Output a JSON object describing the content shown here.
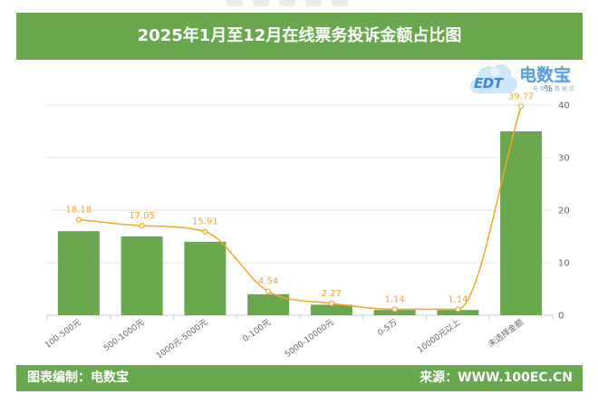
{
  "chart_data": {
    "type": "bar",
    "title": "2025年1月至12月在线票务投诉金额占比图",
    "categories": [
      "100-500元",
      "500-1000元",
      "1000元-5000元",
      "0-100元",
      "5000-10000元",
      "0-5万",
      "10000元以上",
      "未选择金额"
    ],
    "series": [
      {
        "type": "bar",
        "values": [
          16,
          15,
          14,
          4,
          2,
          1,
          1,
          35
        ]
      },
      {
        "type": "line",
        "axis": "right",
        "values": [
          18.18,
          17.05,
          15.91,
          4.54,
          2.27,
          1.14,
          1.14,
          39.77
        ]
      }
    ],
    "y_axis": {
      "position": "right",
      "unit": "%",
      "range": [
        0,
        40
      ],
      "ticks": [
        0,
        10,
        20,
        30,
        40
      ]
    },
    "grid": true,
    "legend": "none",
    "colors": {
      "bar": "#6aa84f",
      "line": "#f5a623",
      "label": "#f0a32e"
    }
  },
  "logo": {
    "cloud_text": "EDT",
    "name": "电数宝",
    "tagline": "电商大数据库"
  },
  "footer": {
    "credit": "图表编制：电数宝",
    "source": "来源：WWW.100EC.CN"
  },
  "theme": {
    "header_color": "#6aa84f"
  }
}
